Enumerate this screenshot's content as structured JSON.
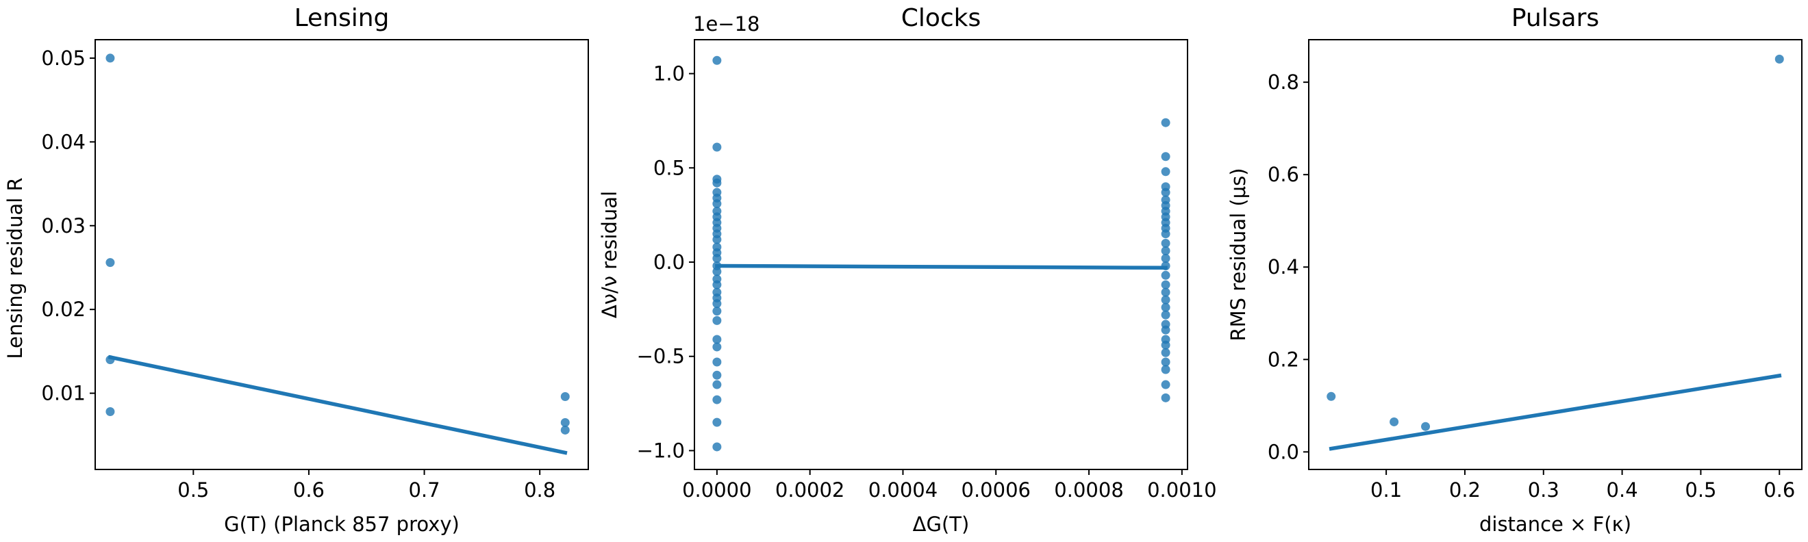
{
  "chart_data": [
    {
      "type": "scatter",
      "title": "Lensing",
      "xlabel": "G(T) (Planck 857 proxy)",
      "ylabel": "Lensing residual R",
      "xlim": [
        0.415,
        0.842
      ],
      "ylim": [
        0.0009,
        0.0522
      ],
      "xticks": [
        0.5,
        0.6,
        0.7,
        0.8
      ],
      "xtick_labels": [
        "0.5",
        "0.6",
        "0.7",
        "0.8"
      ],
      "yticks": [
        0.01,
        0.02,
        0.03,
        0.04,
        0.05
      ],
      "ytick_labels": [
        "0.01",
        "0.02",
        "0.03",
        "0.04",
        "0.05"
      ],
      "y_offset_label": "",
      "points": [
        {
          "x": 0.428,
          "y": 0.05
        },
        {
          "x": 0.428,
          "y": 0.0256
        },
        {
          "x": 0.428,
          "y": 0.014
        },
        {
          "x": 0.428,
          "y": 0.0078
        },
        {
          "x": 0.822,
          "y": 0.0096
        },
        {
          "x": 0.822,
          "y": 0.0065
        },
        {
          "x": 0.822,
          "y": 0.0056
        }
      ],
      "fit": {
        "x": [
          0.428,
          0.822
        ],
        "y": [
          0.0143,
          0.0029
        ]
      },
      "grid": false,
      "legend": "none",
      "color": "#1f77b4"
    },
    {
      "type": "scatter",
      "title": "Clocks",
      "xlabel": "ΔG(T)",
      "ylabel": "Δν/ν residual",
      "xlim": [
        -4.84e-05,
        0.001012
      ],
      "ylim": [
        -1.1e-18,
        1.18e-18
      ],
      "xticks": [
        0,
        0.0002,
        0.0004,
        0.0006,
        0.0008,
        0.001
      ],
      "xtick_labels": [
        "0.0000",
        "0.0002",
        "0.0004",
        "0.0006",
        "0.0008",
        "0.0010"
      ],
      "yticks": [
        -1e-18,
        -5e-19,
        0,
        5e-19,
        1e-18
      ],
      "ytick_labels": [
        "−1.0",
        "−0.5",
        "0.0",
        "0.5",
        "1.0"
      ],
      "y_offset_label": "1e−18",
      "points": [
        {
          "x": 0,
          "y": 1.07e-18
        },
        {
          "x": 0,
          "y": 6.1e-19
        },
        {
          "x": 0,
          "y": 4.4e-19
        },
        {
          "x": 0,
          "y": 4.2e-19
        },
        {
          "x": 0,
          "y": 3.7e-19
        },
        {
          "x": 0,
          "y": 3.4e-19
        },
        {
          "x": 0,
          "y": 3.1e-19
        },
        {
          "x": 0,
          "y": 2.7e-19
        },
        {
          "x": 0,
          "y": 2.4e-19
        },
        {
          "x": 0,
          "y": 2.1e-19
        },
        {
          "x": 0,
          "y": 1.8e-19
        },
        {
          "x": 0,
          "y": 1.5e-19
        },
        {
          "x": 0,
          "y": 1.2e-19
        },
        {
          "x": 0,
          "y": 8e-20
        },
        {
          "x": 0,
          "y": 5e-20
        },
        {
          "x": 0,
          "y": 2e-20
        },
        {
          "x": 0,
          "y": -2e-20
        },
        {
          "x": 0,
          "y": -5e-20
        },
        {
          "x": 0,
          "y": -9e-20
        },
        {
          "x": 0,
          "y": -1.2e-19
        },
        {
          "x": 0,
          "y": -1.6e-19
        },
        {
          "x": 0,
          "y": -1.9e-19
        },
        {
          "x": 0,
          "y": -2.2e-19
        },
        {
          "x": 0,
          "y": -2.6e-19
        },
        {
          "x": 0,
          "y": -3.1e-19
        },
        {
          "x": 0,
          "y": -4.1e-19
        },
        {
          "x": 0,
          "y": -4.5e-19
        },
        {
          "x": 0,
          "y": -5.3e-19
        },
        {
          "x": 0,
          "y": -6e-19
        },
        {
          "x": 0,
          "y": -6.5e-19
        },
        {
          "x": 0,
          "y": -7.3e-19
        },
        {
          "x": 0,
          "y": -8.5e-19
        },
        {
          "x": 0,
          "y": -9.8e-19
        },
        {
          "x": 0.000965,
          "y": 7.4e-19
        },
        {
          "x": 0.000965,
          "y": 5.6e-19
        },
        {
          "x": 0.000965,
          "y": 4.8e-19
        },
        {
          "x": 0.000965,
          "y": 4e-19
        },
        {
          "x": 0.000965,
          "y": 3.7e-19
        },
        {
          "x": 0.000965,
          "y": 3.3e-19
        },
        {
          "x": 0.000965,
          "y": 3e-19
        },
        {
          "x": 0.000965,
          "y": 2.7e-19
        },
        {
          "x": 0.000965,
          "y": 2.4e-19
        },
        {
          "x": 0.000965,
          "y": 2.1e-19
        },
        {
          "x": 0.000965,
          "y": 1.8e-19
        },
        {
          "x": 0.000965,
          "y": 1.5e-19
        },
        {
          "x": 0.000965,
          "y": 1e-19
        },
        {
          "x": 0.000965,
          "y": 6e-20
        },
        {
          "x": 0.000965,
          "y": 2e-20
        },
        {
          "x": 0.000965,
          "y": -2e-20
        },
        {
          "x": 0.000965,
          "y": -7e-20
        },
        {
          "x": 0.000965,
          "y": -1.2e-19
        },
        {
          "x": 0.000965,
          "y": -1.6e-19
        },
        {
          "x": 0.000965,
          "y": -2e-19
        },
        {
          "x": 0.000965,
          "y": -2.4e-19
        },
        {
          "x": 0.000965,
          "y": -2.8e-19
        },
        {
          "x": 0.000965,
          "y": -3.3e-19
        },
        {
          "x": 0.000965,
          "y": -3.6e-19
        },
        {
          "x": 0.000965,
          "y": -4.1e-19
        },
        {
          "x": 0.000965,
          "y": -4.4e-19
        },
        {
          "x": 0.000965,
          "y": -4.8e-19
        },
        {
          "x": 0.000965,
          "y": -5.3e-19
        },
        {
          "x": 0.000965,
          "y": -5.7e-19
        },
        {
          "x": 0.000965,
          "y": -6.5e-19
        },
        {
          "x": 0.000965,
          "y": -7.2e-19
        }
      ],
      "fit": {
        "x": [
          0,
          0.000965
        ],
        "y": [
          -2e-20,
          -3e-20
        ]
      },
      "grid": false,
      "legend": "none",
      "color": "#1f77b4"
    },
    {
      "type": "scatter",
      "title": "Pulsars",
      "xlabel": "distance × F(κ)",
      "ylabel": "RMS residual (μs)",
      "xlim": [
        0.0015,
        0.6285
      ],
      "ylim": [
        -0.038,
        0.892
      ],
      "xticks": [
        0.1,
        0.2,
        0.3,
        0.4,
        0.5,
        0.6
      ],
      "xtick_labels": [
        "0.1",
        "0.2",
        "0.3",
        "0.4",
        "0.5",
        "0.6"
      ],
      "yticks": [
        0,
        0.2,
        0.4,
        0.6,
        0.8
      ],
      "ytick_labels": [
        "0.0",
        "0.2",
        "0.4",
        "0.6",
        "0.8"
      ],
      "y_offset_label": "",
      "points": [
        {
          "x": 0.03,
          "y": 0.12
        },
        {
          "x": 0.11,
          "y": 0.065
        },
        {
          "x": 0.15,
          "y": 0.055
        },
        {
          "x": 0.6,
          "y": 0.85
        }
      ],
      "fit": {
        "x": [
          0.03,
          0.6
        ],
        "y": [
          0.007,
          0.165
        ]
      },
      "grid": false,
      "legend": "none",
      "color": "#1f77b4"
    }
  ]
}
